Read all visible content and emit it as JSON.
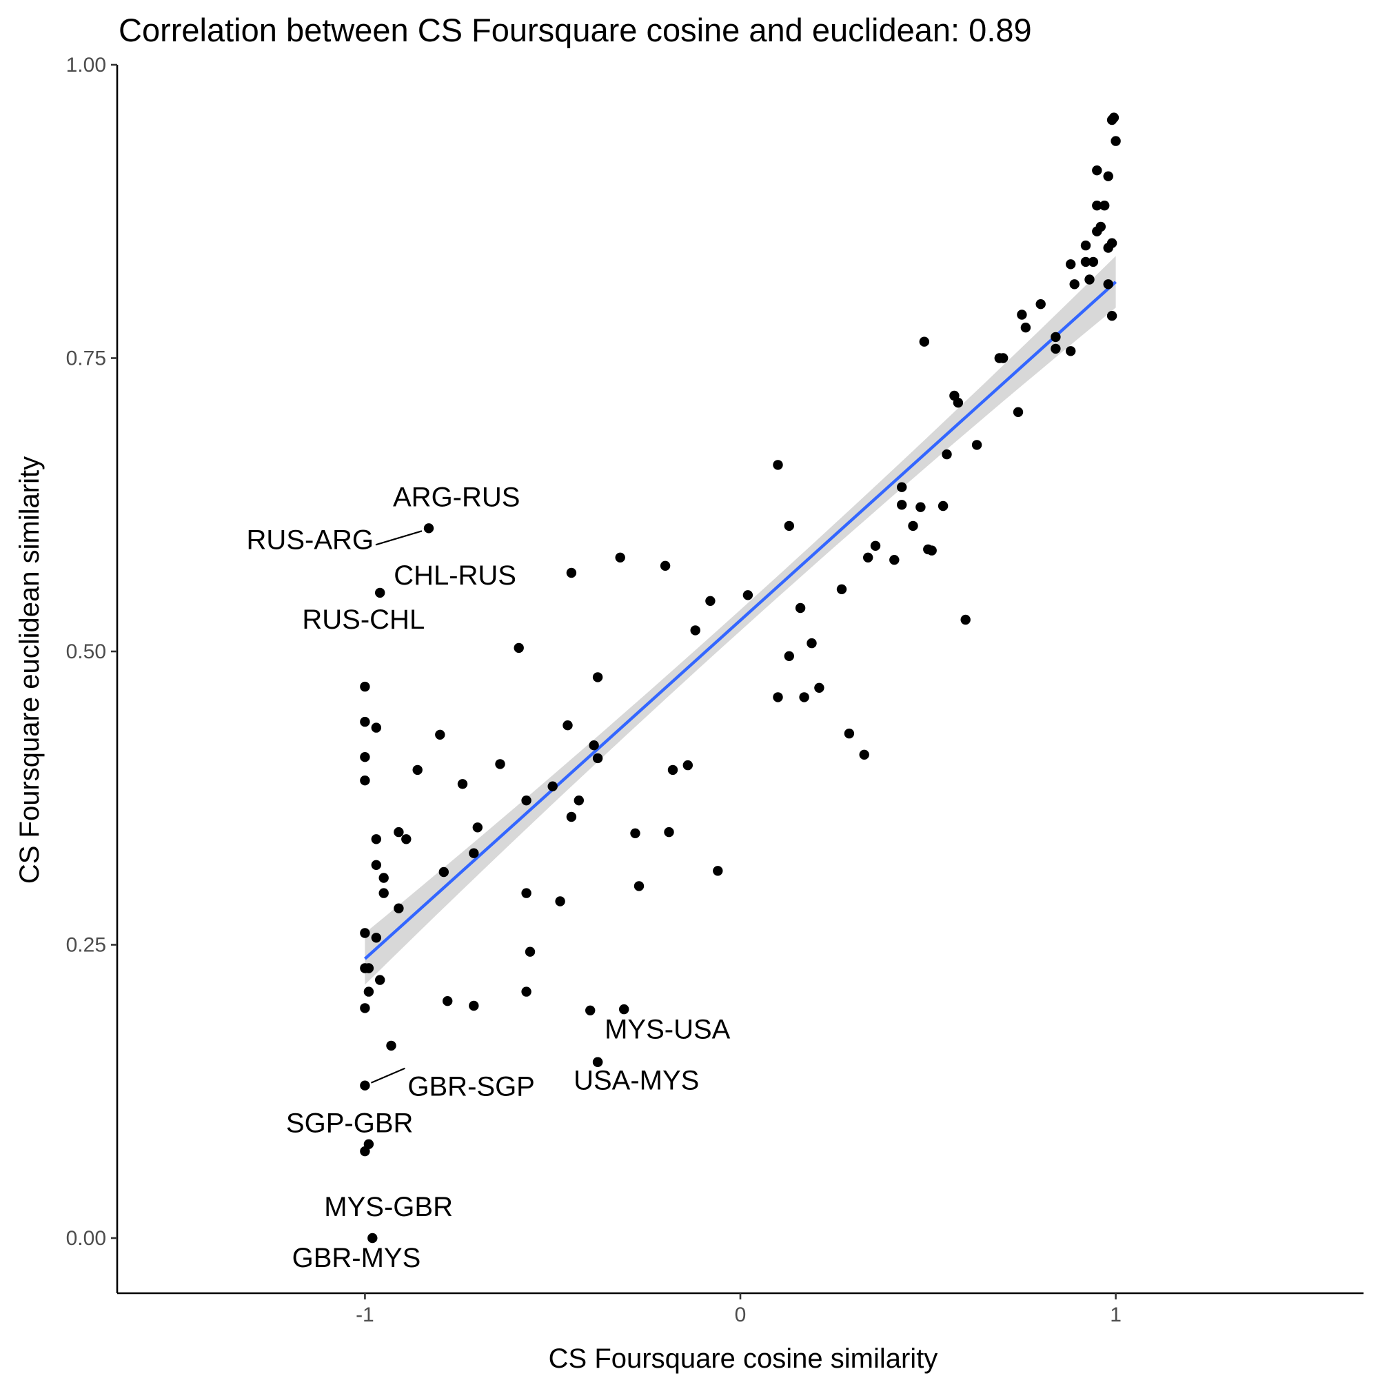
{
  "chart_data": {
    "type": "scatter",
    "title": "Correlation between CS Foursquare cosine and euclidean: 0.89",
    "xlabel": "CS Foursquare cosine similarity",
    "ylabel": "CS Foursquare euclidean similarity",
    "xlim": [
      -1.66,
      1.66
    ],
    "ylim": [
      -0.047,
      1.0
    ],
    "x_ticks": [
      -1,
      0,
      1
    ],
    "x_tick_labels": [
      "-1",
      "0",
      "1"
    ],
    "y_ticks": [
      0,
      0.25,
      0.5,
      0.75,
      1
    ],
    "y_tick_labels": [
      "0.00",
      "0.25",
      "0.50",
      "0.75",
      "1.00"
    ],
    "grid": false,
    "legend": "none",
    "colors": {
      "points": "#000000",
      "fit_line": "#3366ff",
      "confidence_band": "#bebebe"
    },
    "fit": {
      "method": "linear",
      "x_range": [
        -1,
        1
      ],
      "y_at_x_min": 0.238,
      "y_at_x_max": 0.815,
      "ci_halfwidth_ends": 0.022,
      "ci_halfwidth_center": 0.009
    },
    "points": [
      [
        0.99,
        0.953
      ],
      [
        0.995,
        0.955
      ],
      [
        1.0,
        0.935
      ],
      [
        0.95,
        0.91
      ],
      [
        0.98,
        0.905
      ],
      [
        0.95,
        0.88
      ],
      [
        0.97,
        0.88
      ],
      [
        0.96,
        0.862
      ],
      [
        0.95,
        0.858
      ],
      [
        0.99,
        0.848
      ],
      [
        0.98,
        0.844
      ],
      [
        0.92,
        0.846
      ],
      [
        0.88,
        0.83
      ],
      [
        0.92,
        0.832
      ],
      [
        0.94,
        0.832
      ],
      [
        0.93,
        0.817
      ],
      [
        0.89,
        0.813
      ],
      [
        0.98,
        0.813
      ],
      [
        0.8,
        0.796
      ],
      [
        0.75,
        0.787
      ],
      [
        0.99,
        0.786
      ],
      [
        0.76,
        0.776
      ],
      [
        0.84,
        0.768
      ],
      [
        0.84,
        0.758
      ],
      [
        0.88,
        0.756
      ],
      [
        0.49,
        0.764
      ],
      [
        0.69,
        0.75
      ],
      [
        0.7,
        0.75
      ],
      [
        0.57,
        0.718
      ],
      [
        0.58,
        0.712
      ],
      [
        0.74,
        0.704
      ],
      [
        0.63,
        0.676
      ],
      [
        0.55,
        0.668
      ],
      [
        0.1,
        0.659
      ],
      [
        0.43,
        0.64
      ],
      [
        0.43,
        0.625
      ],
      [
        0.48,
        0.623
      ],
      [
        0.54,
        0.624
      ],
      [
        0.13,
        0.607
      ],
      [
        0.46,
        0.607
      ],
      [
        0.36,
        0.59
      ],
      [
        0.5,
        0.587
      ],
      [
        0.51,
        0.586
      ],
      [
        0.34,
        0.58
      ],
      [
        0.41,
        0.578
      ],
      [
        -0.32,
        0.58
      ],
      [
        -0.2,
        0.573
      ],
      [
        -0.45,
        0.567
      ],
      [
        0.27,
        0.553
      ],
      [
        0.02,
        0.548
      ],
      [
        -0.08,
        0.543
      ],
      [
        0.16,
        0.537
      ],
      [
        0.6,
        0.527
      ],
      [
        -0.12,
        0.518
      ],
      [
        0.19,
        0.507
      ],
      [
        -0.59,
        0.503
      ],
      [
        0.13,
        0.496
      ],
      [
        -0.38,
        0.478
      ],
      [
        0.21,
        0.469
      ],
      [
        0.1,
        0.461
      ],
      [
        0.17,
        0.461
      ],
      [
        -0.46,
        0.437
      ],
      [
        -0.8,
        0.429
      ],
      [
        -0.39,
        0.42
      ],
      [
        0.29,
        0.43
      ],
      [
        0.33,
        0.412
      ],
      [
        -0.38,
        0.409
      ],
      [
        -0.64,
        0.404
      ],
      [
        -0.14,
        0.403
      ],
      [
        -0.18,
        0.399
      ],
      [
        -0.86,
        0.399
      ],
      [
        -0.74,
        0.387
      ],
      [
        -0.5,
        0.385
      ],
      [
        -0.57,
        0.373
      ],
      [
        -0.43,
        0.373
      ],
      [
        -0.45,
        0.359
      ],
      [
        -0.7,
        0.35
      ],
      [
        -0.28,
        0.345
      ],
      [
        -0.19,
        0.346
      ],
      [
        -0.91,
        0.346
      ],
      [
        -0.89,
        0.34
      ],
      [
        -0.71,
        0.328
      ],
      [
        -0.79,
        0.312
      ],
      [
        -0.06,
        0.313
      ],
      [
        -0.95,
        0.307
      ],
      [
        -0.27,
        0.3
      ],
      [
        -0.57,
        0.294
      ],
      [
        -0.48,
        0.287
      ],
      [
        -0.91,
        0.281
      ],
      [
        -0.56,
        0.244
      ],
      [
        -0.57,
        0.21
      ],
      [
        -0.78,
        0.202
      ],
      [
        -0.71,
        0.198
      ],
      [
        -0.4,
        0.194
      ],
      [
        -0.31,
        0.195
      ],
      [
        -0.93,
        0.164
      ],
      [
        -0.38,
        0.15
      ],
      [
        -0.99,
        0.08
      ],
      [
        -1.0,
        0.074
      ],
      [
        -1.0,
        0.47
      ],
      [
        -1.0,
        0.44
      ],
      [
        -0.97,
        0.435
      ],
      [
        -1.0,
        0.41
      ],
      [
        -1.0,
        0.39
      ],
      [
        -0.97,
        0.34
      ],
      [
        -0.97,
        0.318
      ],
      [
        -0.96,
        0.22
      ],
      [
        -0.99,
        0.21
      ],
      [
        -1.0,
        0.196
      ],
      [
        -1.0,
        0.26
      ],
      [
        -0.97,
        0.256
      ],
      [
        -1.0,
        0.23
      ],
      [
        -0.99,
        0.23
      ],
      [
        -0.95,
        0.294
      ]
    ],
    "labeled_points": [
      {
        "x": -0.83,
        "y": 0.605,
        "labels": [
          "ARG-RUS",
          "RUS-ARG"
        ]
      },
      {
        "x": -0.96,
        "y": 0.55,
        "labels": [
          "CHL-RUS",
          "RUS-CHL"
        ]
      },
      {
        "x": -0.38,
        "y": 0.15,
        "labels": [
          "MYS-USA",
          "USA-MYS"
        ]
      },
      {
        "x": -1.0,
        "y": 0.13,
        "labels": [
          "GBR-SGP",
          "SGP-GBR"
        ]
      },
      {
        "x": -0.98,
        "y": 0.0,
        "labels": [
          "MYS-GBR",
          "GBR-MYS"
        ]
      }
    ]
  }
}
